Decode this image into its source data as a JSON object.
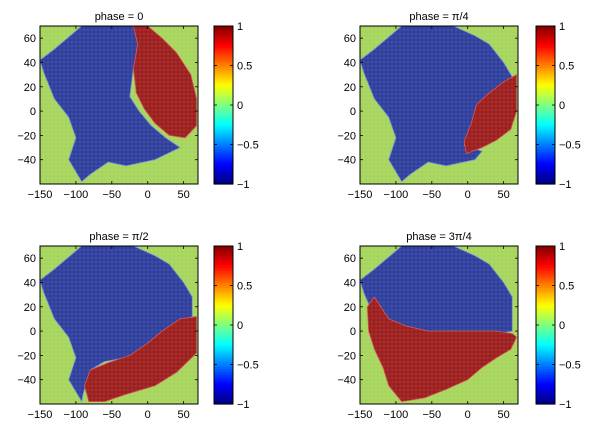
{
  "figure": {
    "panel_titles": [
      "phase = 0",
      "phase = π/4",
      "phase = π/2",
      "phase = 3π/4"
    ]
  },
  "chart_data": [
    {
      "type": "heatmap",
      "title": "phase = 0",
      "xlabel": "",
      "ylabel": "",
      "xlim": [
        -150,
        70
      ],
      "ylim": [
        -60,
        70
      ],
      "xticks": [
        -150,
        -100,
        -50,
        0,
        50
      ],
      "yticks": [
        60,
        40,
        20,
        0,
        -20,
        -40
      ],
      "clim": [
        -1,
        1
      ],
      "colorbar_ticks": [
        1,
        0.5,
        0,
        -0.5,
        -1
      ],
      "colormap": "jet",
      "background_value": 0,
      "regions": [
        {
          "value": -1,
          "description_points": [
            [
              -150,
              42
            ],
            [
              -132,
              50
            ],
            [
              -112,
              60
            ],
            [
              -92,
              70
            ],
            [
              -20,
              70
            ],
            [
              -10,
              60
            ],
            [
              -20,
              35
            ],
            [
              -25,
              12
            ],
            [
              -12,
              0
            ],
            [
              5,
              -12
            ],
            [
              25,
              -22
            ],
            [
              45,
              -30
            ],
            [
              10,
              -40
            ],
            [
              -30,
              -45
            ],
            [
              -55,
              -42
            ],
            [
              -80,
              -52
            ],
            [
              -92,
              -58
            ],
            [
              -110,
              -40
            ],
            [
              -100,
              -22
            ],
            [
              -110,
              -5
            ],
            [
              -130,
              10
            ],
            [
              -145,
              32
            ]
          ]
        },
        {
          "value": 1,
          "description_points": [
            [
              -20,
              70
            ],
            [
              0,
              70
            ],
            [
              20,
              60
            ],
            [
              40,
              48
            ],
            [
              60,
              30
            ],
            [
              68,
              10
            ],
            [
              68,
              -12
            ],
            [
              52,
              -22
            ],
            [
              30,
              -20
            ],
            [
              10,
              -10
            ],
            [
              -5,
              2
            ],
            [
              -16,
              15
            ],
            [
              -20,
              35
            ],
            [
              -14,
              55
            ]
          ]
        }
      ]
    },
    {
      "type": "heatmap",
      "title": "phase = π/4",
      "xlabel": "",
      "ylabel": "",
      "xlim": [
        -150,
        70
      ],
      "ylim": [
        -60,
        70
      ],
      "xticks": [
        -150,
        -100,
        -50,
        0,
        50
      ],
      "yticks": [
        60,
        40,
        20,
        0,
        -20,
        -40
      ],
      "clim": [
        -1,
        1
      ],
      "colorbar_ticks": [
        1,
        0.5,
        0,
        -0.5,
        -1
      ],
      "colormap": "jet",
      "background_value": 0,
      "regions": [
        {
          "value": -1,
          "description_points": [
            [
              -150,
              42
            ],
            [
              -132,
              50
            ],
            [
              -112,
              60
            ],
            [
              -92,
              70
            ],
            [
              -20,
              70
            ],
            [
              10,
              62
            ],
            [
              30,
              55
            ],
            [
              50,
              40
            ],
            [
              62,
              28
            ],
            [
              40,
              18
            ],
            [
              20,
              5
            ],
            [
              10,
              -12
            ],
            [
              -5,
              -28
            ],
            [
              20,
              -33
            ],
            [
              10,
              -40
            ],
            [
              -30,
              -45
            ],
            [
              -55,
              -42
            ],
            [
              -80,
              -52
            ],
            [
              -92,
              -58
            ],
            [
              -110,
              -40
            ],
            [
              -100,
              -22
            ],
            [
              -110,
              -5
            ],
            [
              -130,
              10
            ],
            [
              -145,
              32
            ]
          ]
        },
        {
          "value": 1,
          "description_points": [
            [
              68,
              30
            ],
            [
              68,
              0
            ],
            [
              60,
              -15
            ],
            [
              40,
              -24
            ],
            [
              20,
              -30
            ],
            [
              -2,
              -35
            ],
            [
              -5,
              -25
            ],
            [
              5,
              -10
            ],
            [
              12,
              5
            ],
            [
              28,
              14
            ],
            [
              50,
              24
            ]
          ]
        }
      ]
    },
    {
      "type": "heatmap",
      "title": "phase = π/2",
      "xlabel": "",
      "ylabel": "",
      "xlim": [
        -150,
        70
      ],
      "ylim": [
        -60,
        70
      ],
      "xticks": [
        -150,
        -100,
        -50,
        0,
        50
      ],
      "yticks": [
        60,
        40,
        20,
        0,
        -20,
        -40
      ],
      "clim": [
        -1,
        1
      ],
      "colorbar_ticks": [
        1,
        0.5,
        0,
        -0.5,
        -1
      ],
      "colormap": "jet",
      "background_value": 0,
      "regions": [
        {
          "value": -1,
          "description_points": [
            [
              -150,
              42
            ],
            [
              -132,
              50
            ],
            [
              -112,
              60
            ],
            [
              -92,
              70
            ],
            [
              -20,
              70
            ],
            [
              10,
              62
            ],
            [
              30,
              55
            ],
            [
              50,
              40
            ],
            [
              62,
              28
            ],
            [
              62,
              12
            ],
            [
              45,
              8
            ],
            [
              20,
              -2
            ],
            [
              0,
              -14
            ],
            [
              -30,
              -22
            ],
            [
              -60,
              -25
            ],
            [
              -80,
              -32
            ],
            [
              -90,
              -52
            ],
            [
              -92,
              -58
            ],
            [
              -110,
              -40
            ],
            [
              -100,
              -22
            ],
            [
              -110,
              -5
            ],
            [
              -130,
              10
            ],
            [
              -145,
              32
            ]
          ]
        },
        {
          "value": 1,
          "description_points": [
            [
              68,
              12
            ],
            [
              68,
              -18
            ],
            [
              40,
              -34
            ],
            [
              10,
              -45
            ],
            [
              -30,
              -52
            ],
            [
              -60,
              -58
            ],
            [
              -82,
              -58
            ],
            [
              -88,
              -45
            ],
            [
              -80,
              -32
            ],
            [
              -55,
              -26
            ],
            [
              -25,
              -20
            ],
            [
              0,
              -10
            ],
            [
              20,
              0
            ],
            [
              45,
              10
            ]
          ]
        }
      ]
    },
    {
      "type": "heatmap",
      "title": "phase = 3π/4",
      "xlabel": "",
      "ylabel": "",
      "xlim": [
        -150,
        70
      ],
      "ylim": [
        -60,
        70
      ],
      "xticks": [
        -150,
        -100,
        -50,
        0,
        50
      ],
      "yticks": [
        60,
        40,
        20,
        0,
        -20,
        -40
      ],
      "clim": [
        -1,
        1
      ],
      "colorbar_ticks": [
        1,
        0.5,
        0,
        -0.5,
        -1
      ],
      "colormap": "jet",
      "background_value": 0,
      "regions": [
        {
          "value": -1,
          "description_points": [
            [
              -150,
              42
            ],
            [
              -132,
              50
            ],
            [
              -112,
              60
            ],
            [
              -92,
              70
            ],
            [
              -20,
              70
            ],
            [
              10,
              62
            ],
            [
              30,
              55
            ],
            [
              50,
              40
            ],
            [
              62,
              28
            ],
            [
              62,
              0
            ],
            [
              40,
              -2
            ],
            [
              10,
              -2
            ],
            [
              -20,
              0
            ],
            [
              -50,
              -2
            ],
            [
              -80,
              2
            ],
            [
              -100,
              0
            ],
            [
              -115,
              8
            ],
            [
              -135,
              18
            ],
            [
              -145,
              32
            ]
          ]
        },
        {
          "value": 1,
          "description_points": [
            [
              68,
              -5
            ],
            [
              60,
              -15
            ],
            [
              40,
              -22
            ],
            [
              20,
              -30
            ],
            [
              0,
              -40
            ],
            [
              -30,
              -48
            ],
            [
              -60,
              -55
            ],
            [
              -92,
              -58
            ],
            [
              -110,
              -45
            ],
            [
              -118,
              -30
            ],
            [
              -130,
              -15
            ],
            [
              -138,
              0
            ],
            [
              -140,
              20
            ],
            [
              -130,
              28
            ],
            [
              -110,
              10
            ],
            [
              -85,
              4
            ],
            [
              -55,
              0
            ],
            [
              -25,
              0
            ],
            [
              10,
              0
            ],
            [
              40,
              0
            ],
            [
              62,
              -2
            ]
          ]
        }
      ]
    }
  ]
}
